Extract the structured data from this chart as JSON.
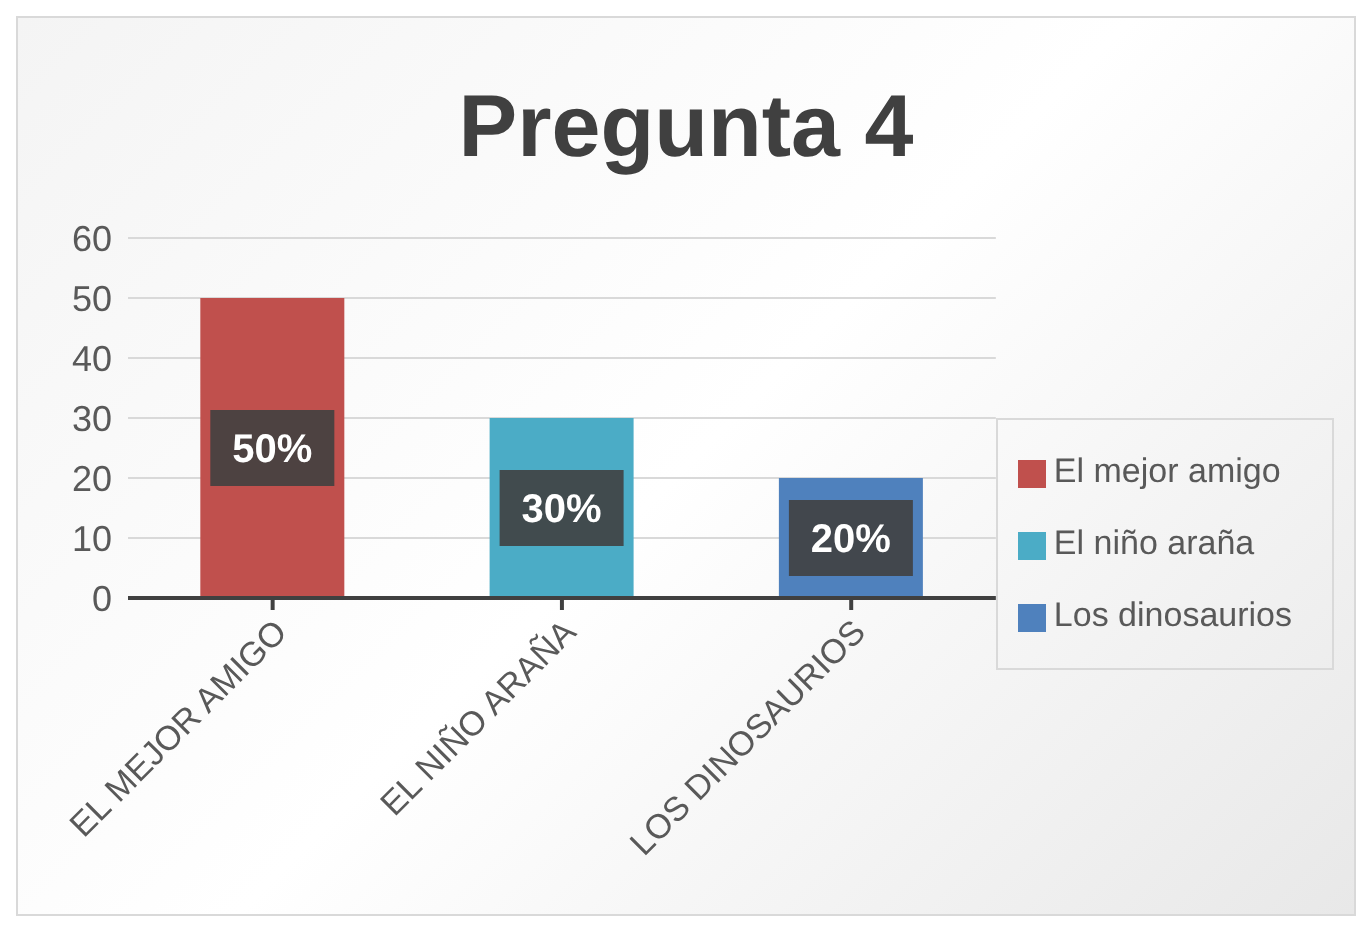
{
  "chart_data": {
    "type": "bar",
    "title": "Pregunta 4",
    "categories": [
      "EL MEJOR AMIGO",
      "EL NIÑO ARAÑA",
      "LOS DINOSAURIOS"
    ],
    "stacked": true,
    "series": [
      {
        "name": "El mejor amigo",
        "color": "#c0504d",
        "values": [
          50,
          null,
          null
        ],
        "value_labels": [
          "50%",
          null,
          null
        ]
      },
      {
        "name": "El niño araña",
        "color": "#4bacc6",
        "values": [
          null,
          30,
          null
        ],
        "value_labels": [
          null,
          "30%",
          null
        ]
      },
      {
        "name": "Los dinosaurios",
        "color": "#4f81bd",
        "values": [
          null,
          null,
          20
        ],
        "value_labels": [
          null,
          null,
          "20%"
        ]
      }
    ],
    "ylim": [
      0,
      60
    ],
    "yticks": [
      0,
      10,
      20,
      30,
      40,
      50,
      60
    ],
    "grid": "y",
    "legend": "right"
  }
}
